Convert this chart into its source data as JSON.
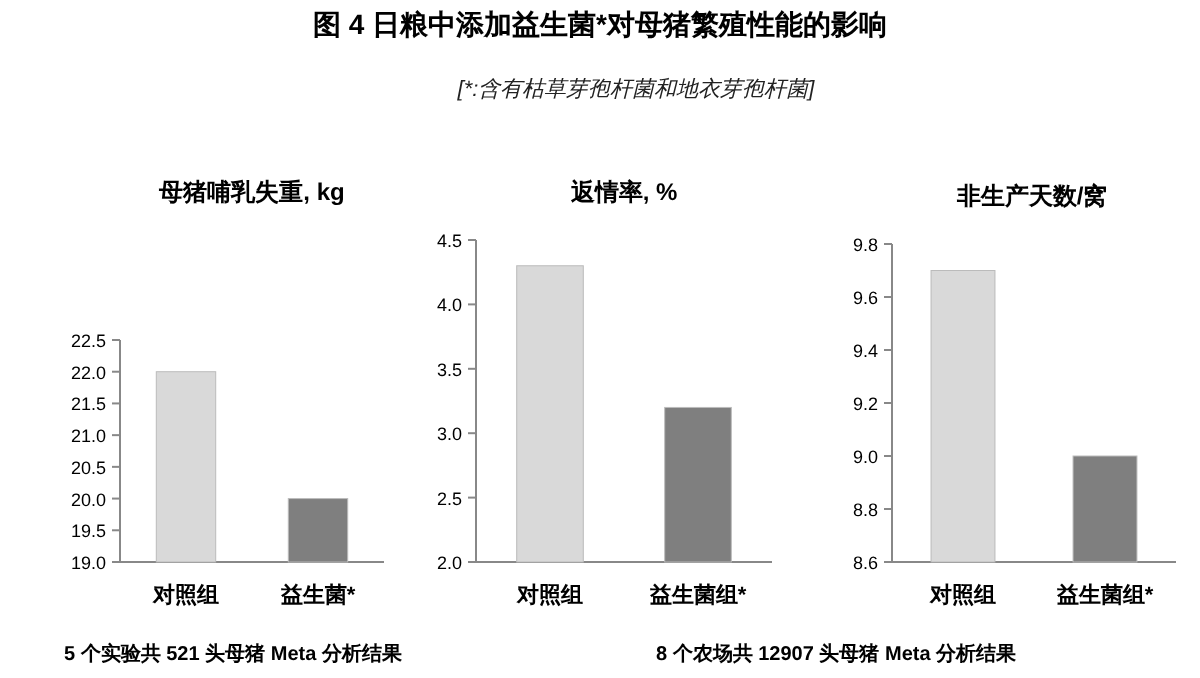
{
  "chart_data": [
    {
      "type": "other",
      "title": "图 4 日粮中添加益生菌*对母猪繁殖性能的影响",
      "subtitle": "[*:含有枯草芽孢杆菌和地衣芽孢杆菌]"
    },
    {
      "type": "bar",
      "title": "母猪哺乳失重, kg",
      "categories": [
        "对照组",
        "益生菌*"
      ],
      "values": [
        22.0,
        20.0
      ],
      "colors": [
        "#d9d9d9",
        "#7f7f7f"
      ],
      "ylim": [
        19.0,
        22.5
      ],
      "yticks": [
        {
          "value": 19.0,
          "label": "19.0"
        },
        {
          "value": 19.5,
          "label": "19.5"
        },
        {
          "value": 20.0,
          "label": "20.0"
        },
        {
          "value": 20.5,
          "label": "20.5"
        },
        {
          "value": 21.0,
          "label": "21.0"
        },
        {
          "value": 21.5,
          "label": "21.5"
        },
        {
          "value": 22.0,
          "label": "22.0"
        },
        {
          "value": 22.5,
          "label": "22.5"
        }
      ],
      "annotations": [
        "5 个实验共 521 头母猪 Meta 分析结果"
      ]
    },
    {
      "type": "bar",
      "title": "返情率, %",
      "categories": [
        "对照组",
        "益生菌组*"
      ],
      "values": [
        4.3,
        3.2
      ],
      "colors": [
        "#d9d9d9",
        "#7f7f7f"
      ],
      "ylim": [
        2.0,
        4.5
      ],
      "yticks": [
        {
          "value": 2.0,
          "label": "2.0"
        },
        {
          "value": 2.5,
          "label": "2.5"
        },
        {
          "value": 3.0,
          "label": "3.0"
        },
        {
          "value": 3.5,
          "label": "3.5"
        },
        {
          "value": 4.0,
          "label": "4.0"
        },
        {
          "value": 4.5,
          "label": "4.5"
        }
      ],
      "annotations": [
        "8 个农场共 12907 头母猪 Meta 分析结果"
      ]
    },
    {
      "type": "bar",
      "title": "非生产天数/窝",
      "categories": [
        "对照组",
        "益生菌组*"
      ],
      "values": [
        9.7,
        9.0
      ],
      "colors": [
        "#d9d9d9",
        "#7f7f7f"
      ],
      "ylim": [
        8.6,
        9.8
      ],
      "yticks": [
        {
          "value": 8.6,
          "label": "8.6"
        },
        {
          "value": 8.8,
          "label": "8.8"
        },
        {
          "value": 9.0,
          "label": "9.0"
        },
        {
          "value": 9.2,
          "label": "9.2"
        },
        {
          "value": 9.4,
          "label": "9.4"
        },
        {
          "value": 9.6,
          "label": "9.6"
        },
        {
          "value": 9.8,
          "label": "9.8"
        }
      ]
    }
  ]
}
